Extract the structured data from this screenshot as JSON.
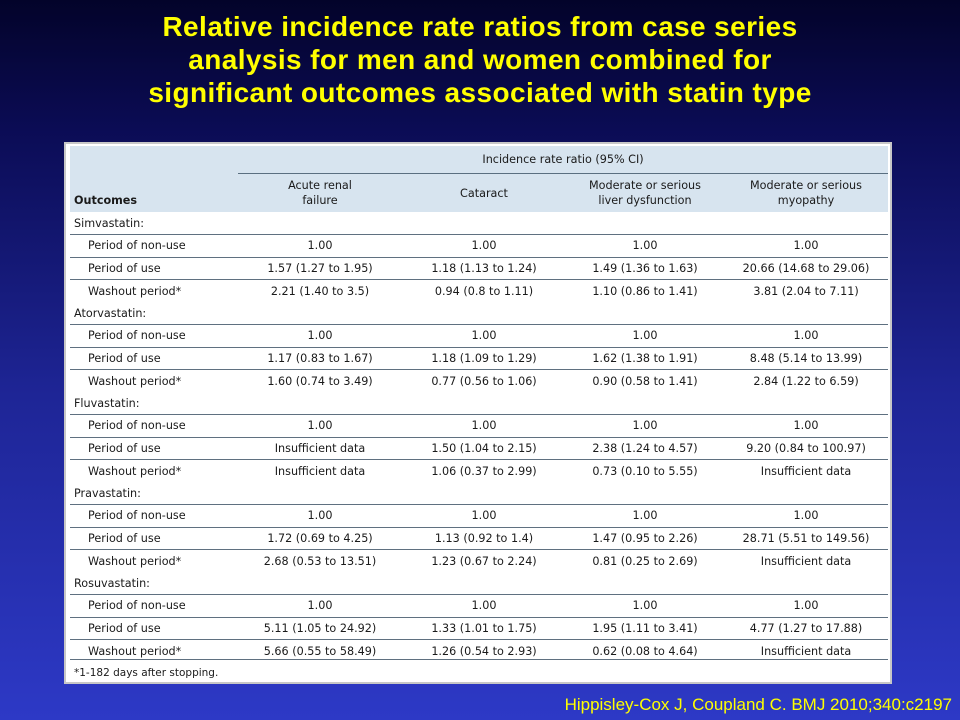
{
  "slide": {
    "title_lines": [
      "Relative incidence rate ratios from case series",
      "analysis for men and women combined for",
      "significant outcomes associated with statin type"
    ],
    "citation": "Hippisley-Cox J, Coupland C.   BMJ 2010;340:c2197"
  },
  "table": {
    "outcomes_header": "Outcomes",
    "group_header": "Incidence rate ratio (95% CI)",
    "columns": [
      [
        "Acute renal",
        "failure"
      ],
      [
        "Cataract"
      ],
      [
        "Moderate or serious",
        "liver dysfunction"
      ],
      [
        "Moderate or serious",
        "myopathy"
      ]
    ],
    "groups": [
      {
        "name": "Simvastatin:",
        "rows": [
          {
            "label": "Period of non-use",
            "values": [
              "1.00",
              "1.00",
              "1.00",
              "1.00"
            ]
          },
          {
            "label": "Period of use",
            "values": [
              "1.57 (1.27 to 1.95)",
              "1.18 (1.13 to 1.24)",
              "1.49 (1.36 to 1.63)",
              "20.66 (14.68 to 29.06)"
            ]
          },
          {
            "label": "Washout period*",
            "values": [
              "2.21 (1.40 to 3.5)",
              "0.94 (0.8 to 1.11)",
              "1.10 (0.86 to 1.41)",
              "3.81 (2.04 to 7.11)"
            ]
          }
        ]
      },
      {
        "name": "Atorvastatin:",
        "rows": [
          {
            "label": "Period of non-use",
            "values": [
              "1.00",
              "1.00",
              "1.00",
              "1.00"
            ]
          },
          {
            "label": "Period of use",
            "values": [
              "1.17 (0.83 to 1.67)",
              "1.18 (1.09 to 1.29)",
              "1.62 (1.38 to 1.91)",
              "8.48 (5.14 to 13.99)"
            ]
          },
          {
            "label": "Washout period*",
            "values": [
              "1.60 (0.74 to 3.49)",
              "0.77 (0.56 to 1.06)",
              "0.90 (0.58 to 1.41)",
              "2.84 (1.22 to 6.59)"
            ]
          }
        ]
      },
      {
        "name": "Fluvastatin:",
        "rows": [
          {
            "label": "Period of non-use",
            "values": [
              "1.00",
              "1.00",
              "1.00",
              "1.00"
            ]
          },
          {
            "label": "Period of use",
            "values": [
              "Insufficient data",
              "1.50 (1.04 to 2.15)",
              "2.38 (1.24 to 4.57)",
              "9.20 (0.84 to 100.97)"
            ]
          },
          {
            "label": "Washout period*",
            "values": [
              "Insufficient data",
              "1.06 (0.37 to 2.99)",
              "0.73 (0.10 to 5.55)",
              "Insufficient data"
            ]
          }
        ]
      },
      {
        "name": "Pravastatin:",
        "rows": [
          {
            "label": "Period of non-use",
            "values": [
              "1.00",
              "1.00",
              "1.00",
              "1.00"
            ]
          },
          {
            "label": "Period of use",
            "values": [
              "1.72 (0.69 to 4.25)",
              "1.13 (0.92 to 1.4)",
              "1.47 (0.95 to 2.26)",
              "28.71 (5.51 to 149.56)"
            ]
          },
          {
            "label": "Washout period*",
            "values": [
              "2.68 (0.53 to 13.51)",
              "1.23 (0.67 to 2.24)",
              "0.81 (0.25 to 2.69)",
              "Insufficient data"
            ]
          }
        ]
      },
      {
        "name": "Rosuvastatin:",
        "rows": [
          {
            "label": "Period of non-use",
            "values": [
              "1.00",
              "1.00",
              "1.00",
              "1.00"
            ]
          },
          {
            "label": "Period of use",
            "values": [
              "5.11 (1.05 to 24.92)",
              "1.33 (1.01 to 1.75)",
              "1.95 (1.11 to 3.41)",
              "4.77 (1.27 to 17.88)"
            ]
          },
          {
            "label": "Washout period*",
            "values": [
              "5.66 (0.55 to 58.49)",
              "1.26 (0.54 to 2.93)",
              "0.62 (0.08 to 4.64)",
              "Insufficient data"
            ]
          }
        ]
      }
    ],
    "footnote": "*1-182 days after stopping."
  }
}
